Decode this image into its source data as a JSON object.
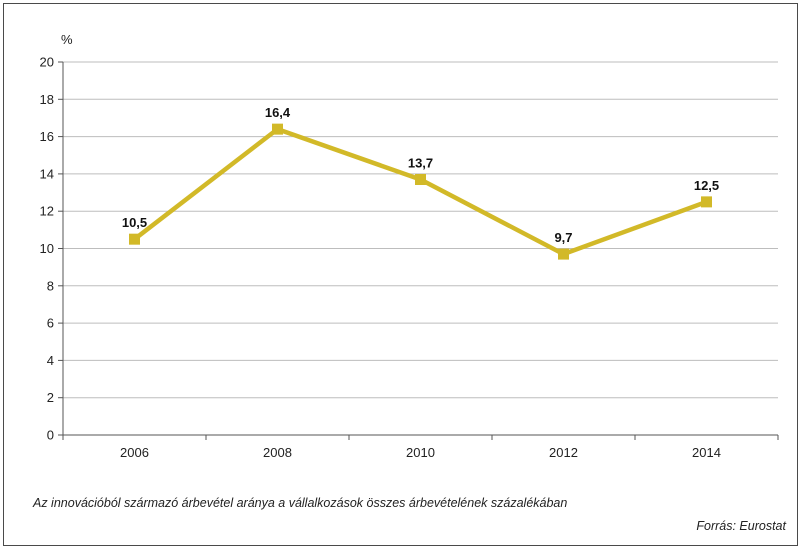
{
  "chart_data": {
    "type": "line",
    "title": "",
    "ylabel": "%",
    "xlabel": "",
    "categories": [
      "2006",
      "2008",
      "2010",
      "2012",
      "2014"
    ],
    "series": [
      {
        "values": [
          10.5,
          16.4,
          13.7,
          9.7,
          12.5
        ]
      }
    ],
    "data_labels": [
      "10,5",
      "16,4",
      "13,7",
      "9,7",
      "12,5"
    ],
    "ylim": [
      0,
      20
    ],
    "yticks": [
      "0",
      "2",
      "4",
      "6",
      "8",
      "10",
      "12",
      "14",
      "16",
      "18",
      "20"
    ],
    "ytick_values": [
      0,
      2,
      4,
      6,
      8,
      10,
      12,
      14,
      16,
      18,
      20
    ],
    "grid": true,
    "legend": "none",
    "line_color": "#d2b928",
    "grid_color": "#bdbdbd"
  },
  "caption": "Az innovációból származó árbevétel aránya a vállalkozások összes árbevételének százalékában",
  "source": "Forrás: Eurostat"
}
